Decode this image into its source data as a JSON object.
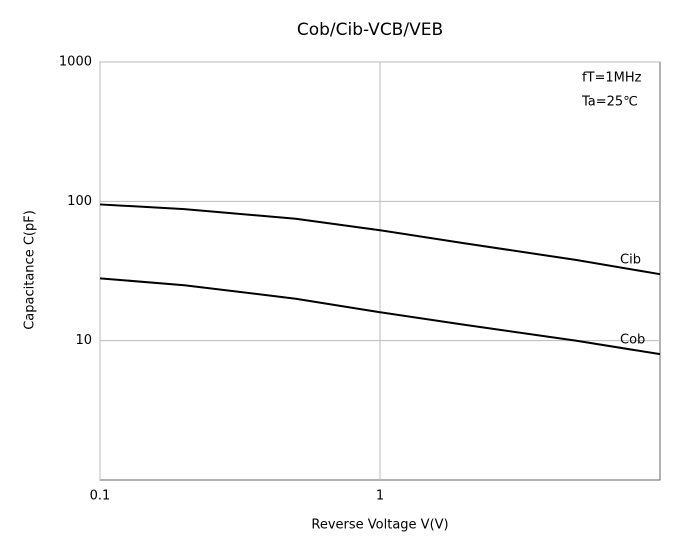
{
  "chart_data": {
    "type": "line",
    "title": "Cob/Cib-VCB/VEB",
    "annotations": [
      "fT=1MHz",
      "Ta=25℃"
    ],
    "x_label": "Reverse Voltage V(V)",
    "y_label": "Capacitance C(pF)",
    "x": [
      0.1,
      0.2,
      0.5,
      1,
      2,
      5,
      10
    ],
    "series": [
      {
        "name": "Cib",
        "color": "#000000",
        "values": [
          95,
          88,
          75,
          62,
          50,
          38,
          30
        ]
      },
      {
        "name": "Cob",
        "color": "#000000",
        "values": [
          28,
          25,
          20,
          16,
          13,
          10,
          8
        ]
      }
    ],
    "xlim": [
      0.1,
      10
    ],
    "xticks": [
      0.1,
      1
    ],
    "ylim": [
      1,
      1000
    ],
    "yticks": [
      10,
      100,
      1000
    ],
    "log_x": true,
    "log_y": true,
    "grid": true
  }
}
